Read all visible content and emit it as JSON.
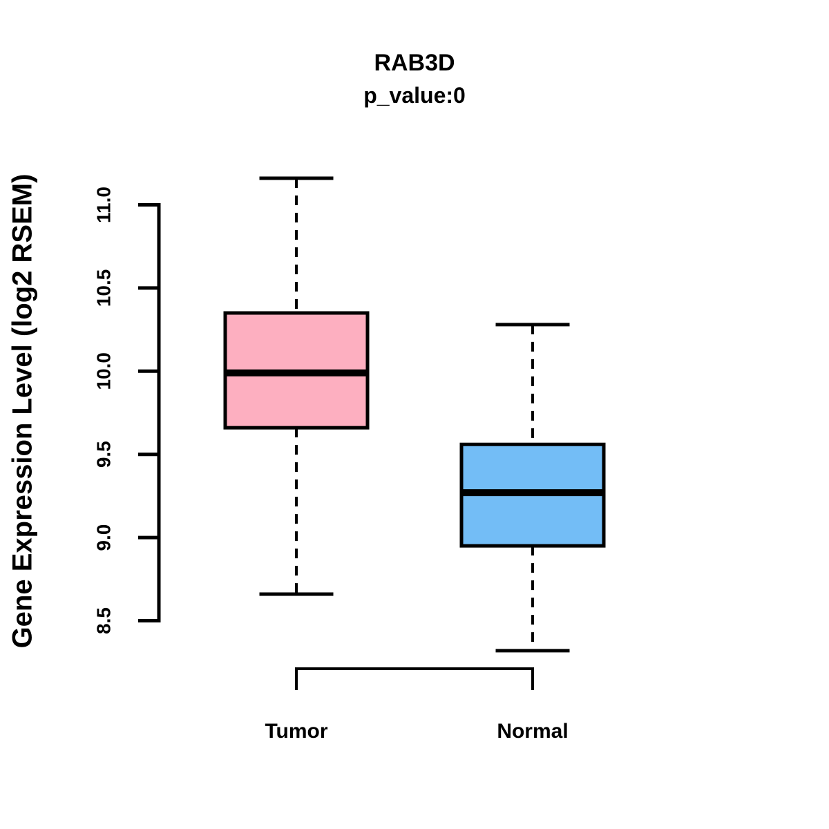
{
  "chart_data": {
    "type": "boxplot",
    "title": "RAB3D",
    "subtitle": "p_value:0",
    "ylabel": "Gene Expression Level (log2 RSEM)",
    "xlabel": "",
    "ylim": [
      8.5,
      11.0
    ],
    "grid": false,
    "legend": "none",
    "yticks": [
      {
        "value": 8.5,
        "label": "8.5"
      },
      {
        "value": 9.0,
        "label": "9.0"
      },
      {
        "value": 9.5,
        "label": "9.5"
      },
      {
        "value": 10.0,
        "label": "10.0"
      },
      {
        "value": 10.5,
        "label": "10.5"
      },
      {
        "value": 11.0,
        "label": "11.0"
      }
    ],
    "categories": [
      "Tumor",
      "Normal"
    ],
    "series": [
      {
        "name": "Tumor",
        "color": "#FDAFC0",
        "border_color": "#000000",
        "whisker_low": 8.66,
        "q1": 9.66,
        "median": 9.99,
        "q3": 10.35,
        "whisker_high": 11.16
      },
      {
        "name": "Normal",
        "color": "#73BDF6",
        "border_color": "#000000",
        "whisker_low": 8.32,
        "q1": 8.95,
        "median": 9.27,
        "q3": 9.56,
        "whisker_high": 10.28
      }
    ]
  }
}
